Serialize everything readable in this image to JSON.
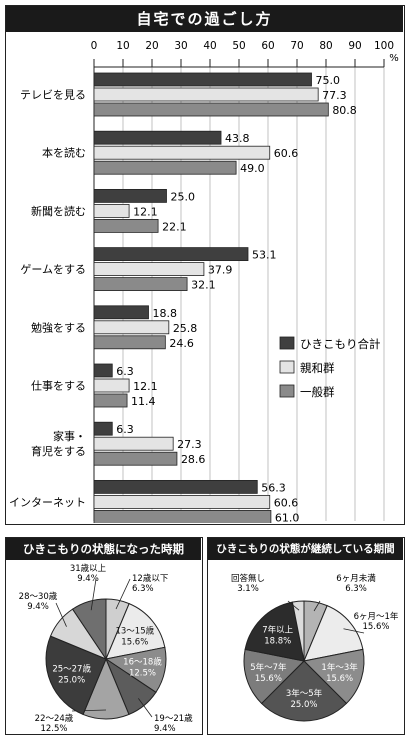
{
  "colors": {
    "hikikomori": "#3f3f3f",
    "shinwa": "#e4e4e4",
    "ippan": "#8a8a8a",
    "titlebar": "#1a1a1a"
  },
  "top": {
    "title": "自宅での過ごし方",
    "pct_unit": "%",
    "legend": [
      "ひきこもり合計",
      "親和群",
      "一般群"
    ]
  },
  "bottom_left": {
    "title": "ひきこもりの状態になった時期"
  },
  "bottom_right": {
    "title": "ひきこもりの状態が継続している期間"
  },
  "chart_data": [
    {
      "type": "bar",
      "orientation": "horizontal",
      "title": "自宅での過ごし方",
      "xlim": [
        0,
        100
      ],
      "xticks": [
        0,
        10,
        20,
        30,
        40,
        50,
        60,
        70,
        80,
        90,
        100
      ],
      "unit": "%",
      "grid": true,
      "legend_position": "right-middle",
      "categories": [
        "テレビを見る",
        "本を読む",
        "新聞を読む",
        "ゲームをする",
        "勉強をする",
        "仕事をする",
        "家事・育児をする",
        "インターネット"
      ],
      "category_lines": [
        [
          "テレビを見る"
        ],
        [
          "本を読む"
        ],
        [
          "新聞を読む"
        ],
        [
          "ゲームをする"
        ],
        [
          "勉強をする"
        ],
        [
          "仕事をする"
        ],
        [
          "家事・",
          "育児をする"
        ],
        [
          "インターネット"
        ]
      ],
      "series": [
        {
          "name": "ひきこもり合計",
          "values": [
            75.0,
            43.8,
            25.0,
            53.1,
            18.8,
            6.3,
            6.3,
            56.3
          ]
        },
        {
          "name": "親和群",
          "values": [
            77.3,
            60.6,
            12.1,
            37.9,
            25.8,
            12.1,
            27.3,
            60.6
          ]
        },
        {
          "name": "一般群",
          "values": [
            80.8,
            49.0,
            22.1,
            32.1,
            24.6,
            11.4,
            28.6,
            61.0
          ]
        }
      ]
    },
    {
      "type": "pie",
      "title": "ひきこもりの状態になった時期",
      "slices": [
        {
          "label": "12歳以下",
          "value": 6.3,
          "color": "#cfcfcf",
          "label_inside": false
        },
        {
          "label": "13～15歳",
          "value": 15.6,
          "color": "#ebebeb",
          "label_inside": true
        },
        {
          "label": "16～18歳",
          "value": 12.5,
          "color": "#8c8c8c",
          "label_inside": true
        },
        {
          "label": "19～21歳",
          "value": 9.4,
          "color": "#5c5c5c",
          "label_inside": false
        },
        {
          "label": "22～24歳",
          "value": 12.5,
          "color": "#a4a4a4",
          "label_inside": false
        },
        {
          "label": "25～27歳",
          "value": 25.0,
          "color": "#3c3c3c",
          "label_inside": true
        },
        {
          "label": "28～30歳",
          "value": 9.4,
          "color": "#d7d7d7",
          "label_inside": false
        },
        {
          "label": "31歳以上",
          "value": 9.4,
          "color": "#6f6f6f",
          "label_inside": false
        }
      ]
    },
    {
      "type": "pie",
      "title": "ひきこもりの状態が継続している期間",
      "slices": [
        {
          "label": "6ヶ月未満",
          "value": 6.3,
          "color": "#b4b4b4",
          "label_inside": false
        },
        {
          "label": "6ヶ月～1年",
          "value": 15.6,
          "color": "#ececec",
          "label_inside": false
        },
        {
          "label": "1年～3年",
          "value": 15.6,
          "color": "#8c8c8c",
          "label_inside": true
        },
        {
          "label": "3年～5年",
          "value": 25.0,
          "color": "#545454",
          "label_inside": true
        },
        {
          "label": "5年～7年",
          "value": 15.6,
          "color": "#7c7c7c",
          "label_inside": true
        },
        {
          "label": "7年以上",
          "value": 18.8,
          "color": "#2c2c2c",
          "label_inside": true
        },
        {
          "label": "回答無し",
          "value": 3.1,
          "color": "#dcdcdc",
          "label_inside": false
        }
      ]
    }
  ]
}
